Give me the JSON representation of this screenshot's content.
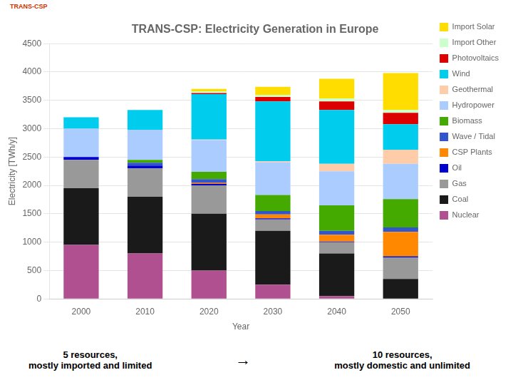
{
  "chart_data": {
    "type": "bar",
    "title": "TRANS-CSP: Electricity Generation in Europe",
    "xlabel": "Year",
    "ylabel": "Electricity [TWh/y]",
    "categories": [
      "2000",
      "2010",
      "2020",
      "2030",
      "2040",
      "2050"
    ],
    "series": [
      {
        "name": "Nuclear",
        "color": "#b05090",
        "values": [
          950,
          800,
          500,
          250,
          50,
          0
        ]
      },
      {
        "name": "Coal",
        "color": "#1a1a1a",
        "values": [
          1000,
          1000,
          1000,
          950,
          750,
          350
        ]
      },
      {
        "name": "Gas",
        "color": "#999999",
        "values": [
          500,
          500,
          500,
          200,
          200,
          380
        ]
      },
      {
        "name": "Oil",
        "color": "#0000cc",
        "values": [
          50,
          50,
          30,
          20,
          10,
          20
        ]
      },
      {
        "name": "CSP Plants",
        "color": "#ff8800",
        "values": [
          0,
          0,
          20,
          70,
          120,
          430
        ]
      },
      {
        "name": "Wave / Tidal",
        "color": "#3355cc",
        "values": [
          0,
          50,
          60,
          60,
          70,
          80
        ]
      },
      {
        "name": "Biomass",
        "color": "#44aa00",
        "values": [
          0,
          50,
          130,
          280,
          450,
          500
        ]
      },
      {
        "name": "Hydropower",
        "color": "#aaccff",
        "values": [
          500,
          530,
          560,
          580,
          600,
          620
        ]
      },
      {
        "name": "Geothermal",
        "color": "#ffccaa",
        "values": [
          0,
          0,
          10,
          20,
          130,
          250
        ]
      },
      {
        "name": "Wind",
        "color": "#00ccee",
        "values": [
          200,
          350,
          800,
          1050,
          950,
          450
        ]
      },
      {
        "name": "Photovoltaics",
        "color": "#dd0000",
        "values": [
          0,
          0,
          20,
          80,
          150,
          200
        ]
      },
      {
        "name": "Import Other",
        "color": "#ccffcc",
        "values": [
          0,
          0,
          30,
          30,
          50,
          50
        ]
      },
      {
        "name": "Import Solar",
        "color": "#ffdd00",
        "values": [
          0,
          0,
          40,
          150,
          350,
          650
        ]
      }
    ],
    "stacked": true,
    "ylim": [
      0,
      4500
    ],
    "yticks": [
      0,
      500,
      1000,
      1500,
      2000,
      2500,
      3000,
      3500,
      4000,
      4500
    ],
    "grid": true,
    "legend": "right",
    "annotations": [
      "TRANS-CSP",
      "5 resources,\nmostly imported and limited",
      "→",
      "10 resources,\nmostly domestic and unlimited"
    ]
  }
}
